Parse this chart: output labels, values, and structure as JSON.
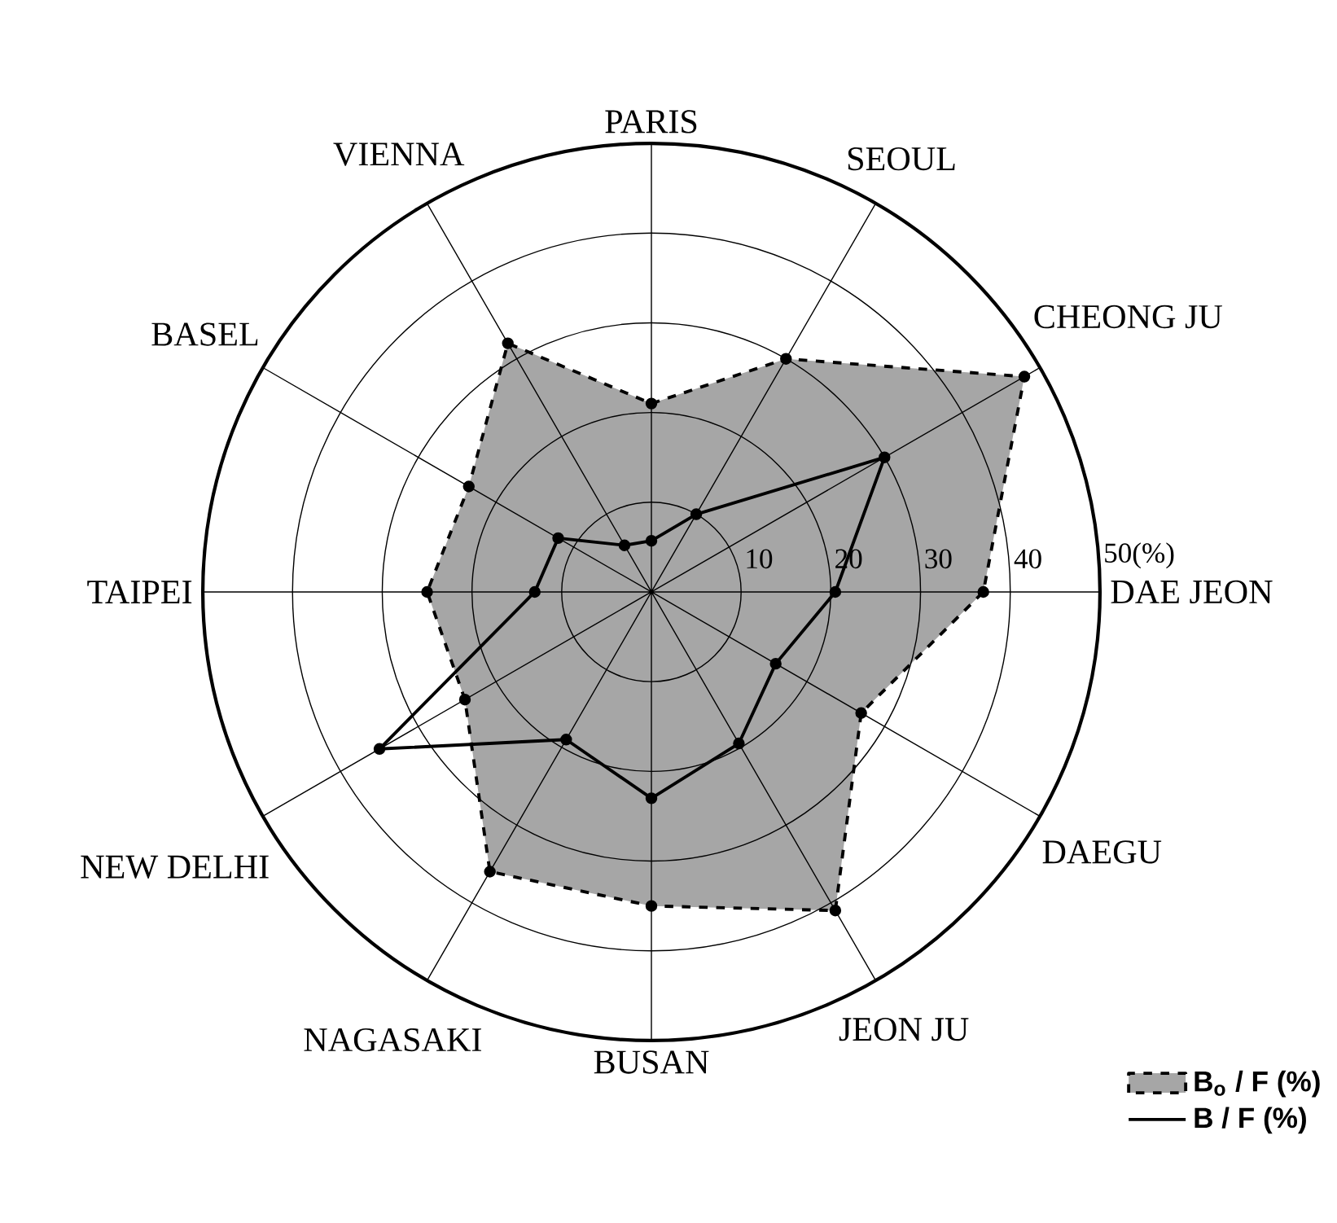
{
  "chart_data": {
    "type": "radar",
    "categories": [
      "PARIS",
      "SEOUL",
      "CHEONG JU",
      "DAE JEON",
      "DAEGU",
      "JEON JU",
      "BUSAN",
      "NAGASAKI",
      "NEW DELHI",
      "TAIPEI",
      "BASEL",
      "VIENNA"
    ],
    "ylim": [
      0,
      50
    ],
    "yticks": [
      10,
      20,
      30,
      40,
      {
        "value": 50,
        "label": "50(%)"
      }
    ],
    "grid": true,
    "legend": "bottom right",
    "marker": "circle",
    "series": [
      {
        "name": "B$_{o}$ / F (%)",
        "line_style": "dashed",
        "color": "#a6a6a6",
        "values": [
          21,
          30,
          48,
          37,
          27,
          41,
          35,
          36,
          24,
          25,
          23.5,
          32
        ]
      },
      {
        "name": "B / F (%)",
        "line_style": "solid",
        "color": "#000000",
        "values": [
          5.7,
          10,
          30,
          20.5,
          16,
          19.5,
          23,
          19,
          35,
          13,
          12,
          6
        ]
      }
    ]
  }
}
